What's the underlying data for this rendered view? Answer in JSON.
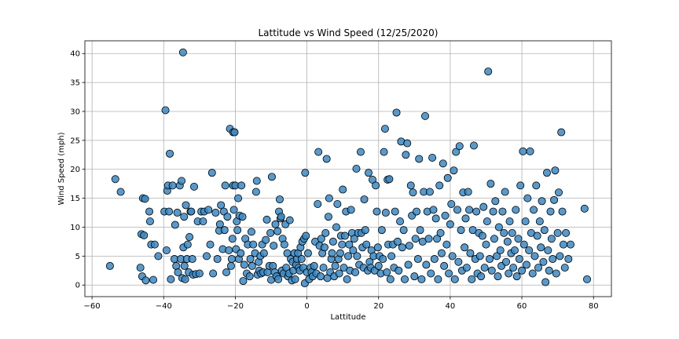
{
  "chart_data": {
    "type": "scatter",
    "title": "Lattitude vs Wind Speed (12/25/2020)",
    "xlabel": "Lattitude",
    "ylabel": "Wind Speed (mph)",
    "xlim": [
      -62,
      85
    ],
    "ylim": [
      -2,
      42.2
    ],
    "xticks": [
      -60,
      -40,
      -20,
      0,
      20,
      40,
      60,
      80
    ],
    "yticks": [
      0,
      5,
      10,
      15,
      20,
      25,
      30,
      35,
      40
    ],
    "grid": true,
    "legend": "none",
    "marker_color": "#3a88c4",
    "marker_edge_color": "#000000",
    "points": [
      [
        -55.0,
        3.3
      ],
      [
        -53.5,
        18.3
      ],
      [
        -52.0,
        16.1
      ],
      [
        -46.5,
        3.0
      ],
      [
        -46.2,
        8.8
      ],
      [
        -46.0,
        1.5
      ],
      [
        -45.8,
        15.0
      ],
      [
        -45.5,
        8.6
      ],
      [
        -45.2,
        14.9
      ],
      [
        -45.0,
        0.8
      ],
      [
        -44.0,
        12.7
      ],
      [
        -43.8,
        11.0
      ],
      [
        -43.5,
        7.0
      ],
      [
        -42.9,
        0.9
      ],
      [
        -42.5,
        7.0
      ],
      [
        -41.5,
        5.0
      ],
      [
        -39.8,
        12.7
      ],
      [
        -39.5,
        30.2
      ],
      [
        -39.2,
        6.0
      ],
      [
        -39.0,
        16.3
      ],
      [
        -38.8,
        17.2
      ],
      [
        -38.5,
        12.7
      ],
      [
        -38.3,
        22.7
      ],
      [
        -38.0,
        1.0
      ],
      [
        -37.5,
        17.2
      ],
      [
        -37.0,
        4.5
      ],
      [
        -36.8,
        10.4
      ],
      [
        -36.5,
        3.3
      ],
      [
        -36.2,
        12.5
      ],
      [
        -36.0,
        2.2
      ],
      [
        -35.5,
        17.2
      ],
      [
        -35.2,
        4.5
      ],
      [
        -35.0,
        18.0
      ],
      [
        -34.8,
        1.2
      ],
      [
        -34.6,
        40.2
      ],
      [
        -34.5,
        6.5
      ],
      [
        -34.3,
        11.8
      ],
      [
        -34.2,
        3.3
      ],
      [
        -34.0,
        1.0
      ],
      [
        -33.8,
        13.8
      ],
      [
        -33.5,
        4.5
      ],
      [
        -33.3,
        7.0
      ],
      [
        -33.0,
        2.2
      ],
      [
        -32.8,
        8.3
      ],
      [
        -32.5,
        12.7
      ],
      [
        -32.3,
        12.7
      ],
      [
        -32.0,
        4.5
      ],
      [
        -31.8,
        1.8
      ],
      [
        -31.5,
        17.0
      ],
      [
        -31.0,
        1.9
      ],
      [
        -30.5,
        11.0
      ],
      [
        -30.0,
        2.0
      ],
      [
        -29.5,
        12.7
      ],
      [
        -29.0,
        11.0
      ],
      [
        -28.7,
        12.7
      ],
      [
        -28.0,
        5.0
      ],
      [
        -27.5,
        13.0
      ],
      [
        -27.0,
        7.0
      ],
      [
        -26.5,
        19.4
      ],
      [
        -26.2,
        2.0
      ],
      [
        -25.5,
        12.5
      ],
      [
        -25.0,
        4.5
      ],
      [
        -24.5,
        9.4
      ],
      [
        -24.3,
        10.5
      ],
      [
        -24.0,
        13.8
      ],
      [
        -23.5,
        6.2
      ],
      [
        -23.2,
        12.7
      ],
      [
        -23.0,
        9.5
      ],
      [
        -22.8,
        17.2
      ],
      [
        -22.5,
        2.2
      ],
      [
        -22.2,
        11.8
      ],
      [
        -21.8,
        6.0
      ],
      [
        -21.5,
        27.0
      ],
      [
        -21.2,
        3.3
      ],
      [
        -21.0,
        4.5
      ],
      [
        -20.8,
        8.0
      ],
      [
        -20.6,
        17.2
      ],
      [
        -20.6,
        26.4
      ],
      [
        -20.4,
        13.0
      ],
      [
        -20.2,
        26.4
      ],
      [
        -20.0,
        17.2
      ],
      [
        -19.8,
        6.2
      ],
      [
        -19.6,
        11.0
      ],
      [
        -19.4,
        9.5
      ],
      [
        -19.2,
        15.0
      ],
      [
        -19.0,
        4.5
      ],
      [
        -18.8,
        12.0
      ],
      [
        -18.5,
        5.5
      ],
      [
        -18.3,
        17.2
      ],
      [
        -18.0,
        11.8
      ],
      [
        -17.8,
        0.7
      ],
      [
        -17.5,
        3.5
      ],
      [
        -17.2,
        8.0
      ],
      [
        -16.8,
        2.0
      ],
      [
        -16.5,
        7.0
      ],
      [
        -16.0,
        1.5
      ],
      [
        -15.8,
        4.5
      ],
      [
        -15.5,
        9.2
      ],
      [
        -15.3,
        3.3
      ],
      [
        -15.0,
        7.0
      ],
      [
        -14.5,
        5.5
      ],
      [
        -14.2,
        16.1
      ],
      [
        -14.0,
        18.0
      ],
      [
        -13.8,
        1.8
      ],
      [
        -13.5,
        4.0
      ],
      [
        -13.3,
        2.5
      ],
      [
        -13.0,
        5.0
      ],
      [
        -12.8,
        2.0
      ],
      [
        -12.5,
        7.0
      ],
      [
        -12.2,
        2.2
      ],
      [
        -12.0,
        5.5
      ],
      [
        -11.5,
        7.8
      ],
      [
        -11.2,
        11.3
      ],
      [
        -11.0,
        2.2
      ],
      [
        -10.5,
        3.3
      ],
      [
        -10.2,
        9.0
      ],
      [
        -10.0,
        0.9
      ],
      [
        -9.8,
        18.7
      ],
      [
        -9.5,
        3.3
      ],
      [
        -9.3,
        6.8
      ],
      [
        -9.0,
        2.2
      ],
      [
        -8.8,
        10.5
      ],
      [
        -8.5,
        1.5
      ],
      [
        -8.2,
        9.3
      ],
      [
        -8.0,
        1.0
      ],
      [
        -7.8,
        12.7
      ],
      [
        -7.6,
        14.8
      ],
      [
        -7.4,
        11.5
      ],
      [
        -7.2,
        11.8
      ],
      [
        -7.0,
        2.5
      ],
      [
        -6.8,
        8.0
      ],
      [
        -6.5,
        2.0
      ],
      [
        -6.3,
        7.0
      ],
      [
        -6.0,
        10.5
      ],
      [
        -5.8,
        3.0
      ],
      [
        -5.5,
        5.5
      ],
      [
        -5.3,
        1.5
      ],
      [
        -5.0,
        2.0
      ],
      [
        -4.8,
        11.2
      ],
      [
        -4.5,
        4.5
      ],
      [
        -4.2,
        0.8
      ],
      [
        -4.0,
        4.0
      ],
      [
        -3.8,
        2.5
      ],
      [
        -3.5,
        5.5
      ],
      [
        -3.3,
        1.0
      ],
      [
        -3.0,
        3.5
      ],
      [
        -2.8,
        4.5
      ],
      [
        -2.5,
        5.5
      ],
      [
        -2.3,
        3.0
      ],
      [
        -2.0,
        2.5
      ],
      [
        -1.8,
        6.5
      ],
      [
        -1.5,
        4.5
      ],
      [
        -1.3,
        7.5
      ],
      [
        -1.0,
        3.0
      ],
      [
        -0.8,
        8.0
      ],
      [
        -0.6,
        0.3
      ],
      [
        -0.5,
        19.4
      ],
      [
        -0.3,
        8.5
      ],
      [
        0.0,
        2.2
      ],
      [
        0.3,
        5.5
      ],
      [
        0.6,
        1.0
      ],
      [
        1.0,
        3.0
      ],
      [
        1.3,
        2.2
      ],
      [
        1.6,
        1.5
      ],
      [
        2.0,
        3.3
      ],
      [
        2.3,
        7.5
      ],
      [
        2.6,
        2.0
      ],
      [
        3.0,
        14.0
      ],
      [
        3.2,
        23.0
      ],
      [
        3.5,
        6.8
      ],
      [
        3.8,
        1.5
      ],
      [
        4.0,
        8.0
      ],
      [
        4.3,
        5.5
      ],
      [
        4.6,
        3.0
      ],
      [
        4.9,
        6.5
      ],
      [
        5.2,
        9.0
      ],
      [
        5.5,
        21.8
      ],
      [
        5.7,
        1.2
      ],
      [
        6.0,
        11.8
      ],
      [
        6.2,
        15.0
      ],
      [
        6.5,
        2.2
      ],
      [
        6.8,
        4.5
      ],
      [
        7.0,
        5.5
      ],
      [
        7.3,
        7.5
      ],
      [
        7.6,
        1.5
      ],
      [
        7.9,
        3.3
      ],
      [
        8.2,
        10.0
      ],
      [
        8.5,
        14.0
      ],
      [
        8.8,
        4.5
      ],
      [
        9.0,
        2.0
      ],
      [
        9.3,
        5.5
      ],
      [
        9.5,
        8.5
      ],
      [
        9.8,
        7.0
      ],
      [
        10.0,
        16.5
      ],
      [
        10.3,
        3.0
      ],
      [
        10.6,
        8.5
      ],
      [
        10.9,
        12.7
      ],
      [
        11.2,
        1.0
      ],
      [
        11.5,
        5.0
      ],
      [
        11.8,
        7.0
      ],
      [
        12.0,
        2.5
      ],
      [
        12.3,
        13.0
      ],
      [
        12.6,
        9.0
      ],
      [
        12.9,
        6.0
      ],
      [
        13.2,
        8.0
      ],
      [
        13.5,
        2.2
      ],
      [
        13.8,
        20.1
      ],
      [
        14.0,
        5.0
      ],
      [
        14.3,
        9.0
      ],
      [
        14.6,
        3.5
      ],
      [
        15.0,
        23.0
      ],
      [
        15.2,
        9.0
      ],
      [
        15.5,
        6.5
      ],
      [
        15.8,
        3.0
      ],
      [
        16.0,
        14.8
      ],
      [
        16.3,
        9.5
      ],
      [
        16.6,
        7.0
      ],
      [
        17.0,
        2.5
      ],
      [
        17.2,
        19.4
      ],
      [
        17.5,
        4.0
      ],
      [
        17.8,
        3.0
      ],
      [
        18.0,
        6.0
      ],
      [
        18.3,
        18.2
      ],
      [
        18.6,
        5.0
      ],
      [
        18.9,
        2.5
      ],
      [
        19.2,
        17.2
      ],
      [
        19.5,
        12.7
      ],
      [
        19.8,
        6.5
      ],
      [
        20.0,
        3.3
      ],
      [
        20.3,
        5.0
      ],
      [
        20.6,
        2.0
      ],
      [
        20.9,
        9.5
      ],
      [
        21.2,
        4.5
      ],
      [
        21.5,
        23.0
      ],
      [
        21.8,
        27.0
      ],
      [
        22.0,
        12.5
      ],
      [
        22.3,
        2.2
      ],
      [
        22.5,
        18.2
      ],
      [
        22.7,
        7.0
      ],
      [
        23.0,
        18.3
      ],
      [
        23.3,
        1.0
      ],
      [
        23.6,
        5.0
      ],
      [
        24.0,
        7.0
      ],
      [
        24.3,
        3.0
      ],
      [
        24.6,
        12.7
      ],
      [
        25.0,
        29.8
      ],
      [
        25.3,
        7.5
      ],
      [
        25.6,
        2.5
      ],
      [
        26.0,
        11.0
      ],
      [
        26.3,
        24.8
      ],
      [
        26.6,
        6.5
      ],
      [
        27.0,
        9.5
      ],
      [
        27.3,
        1.0
      ],
      [
        27.6,
        22.5
      ],
      [
        28.0,
        24.5
      ],
      [
        28.3,
        3.5
      ],
      [
        28.6,
        6.8
      ],
      [
        29.0,
        17.2
      ],
      [
        29.3,
        12.0
      ],
      [
        29.6,
        16.0
      ],
      [
        30.0,
        1.5
      ],
      [
        30.3,
        8.0
      ],
      [
        30.6,
        12.7
      ],
      [
        31.0,
        4.5
      ],
      [
        31.3,
        21.8
      ],
      [
        31.6,
        9.5
      ],
      [
        32.0,
        1.0
      ],
      [
        32.3,
        7.5
      ],
      [
        32.6,
        16.1
      ],
      [
        33.0,
        29.2
      ],
      [
        33.3,
        3.5
      ],
      [
        33.6,
        12.7
      ],
      [
        34.0,
        8.0
      ],
      [
        34.3,
        16.1
      ],
      [
        34.6,
        2.0
      ],
      [
        35.0,
        22.0
      ],
      [
        35.3,
        13.0
      ],
      [
        35.6,
        4.5
      ],
      [
        36.0,
        11.5
      ],
      [
        36.3,
        8.0
      ],
      [
        36.6,
        1.0
      ],
      [
        37.0,
        17.2
      ],
      [
        37.3,
        9.0
      ],
      [
        37.6,
        5.5
      ],
      [
        38.0,
        21.0
      ],
      [
        38.3,
        3.3
      ],
      [
        38.6,
        12.0
      ],
      [
        39.0,
        7.0
      ],
      [
        39.3,
        18.5
      ],
      [
        39.6,
        2.0
      ],
      [
        40.0,
        10.5
      ],
      [
        40.3,
        14.0
      ],
      [
        40.6,
        5.0
      ],
      [
        41.0,
        19.8
      ],
      [
        41.3,
        1.0
      ],
      [
        41.6,
        23.0
      ],
      [
        42.0,
        13.0
      ],
      [
        42.3,
        4.0
      ],
      [
        42.6,
        24.0
      ],
      [
        43.0,
        9.5
      ],
      [
        43.3,
        2.5
      ],
      [
        43.6,
        16.0
      ],
      [
        44.0,
        6.5
      ],
      [
        44.3,
        11.5
      ],
      [
        44.6,
        3.0
      ],
      [
        45.0,
        16.1
      ],
      [
        45.3,
        13.0
      ],
      [
        45.6,
        5.5
      ],
      [
        46.0,
        1.0
      ],
      [
        46.3,
        9.5
      ],
      [
        46.6,
        24.1
      ],
      [
        47.0,
        4.5
      ],
      [
        47.3,
        12.7
      ],
      [
        47.6,
        2.0
      ],
      [
        48.0,
        9.0
      ],
      [
        48.3,
        5.0
      ],
      [
        48.6,
        1.5
      ],
      [
        49.0,
        8.5
      ],
      [
        49.3,
        13.5
      ],
      [
        49.6,
        3.0
      ],
      [
        50.0,
        7.0
      ],
      [
        50.3,
        11.0
      ],
      [
        50.6,
        36.9
      ],
      [
        51.0,
        4.5
      ],
      [
        51.3,
        17.5
      ],
      [
        51.6,
        2.5
      ],
      [
        52.0,
        12.7
      ],
      [
        52.3,
        8.0
      ],
      [
        52.6,
        14.5
      ],
      [
        53.0,
        5.0
      ],
      [
        53.3,
        1.5
      ],
      [
        53.6,
        10.0
      ],
      [
        54.0,
        6.0
      ],
      [
        54.3,
        3.3
      ],
      [
        54.6,
        12.7
      ],
      [
        55.0,
        9.0
      ],
      [
        55.3,
        16.1
      ],
      [
        55.6,
        4.0
      ],
      [
        56.0,
        7.5
      ],
      [
        56.3,
        2.0
      ],
      [
        56.6,
        11.0
      ],
      [
        57.0,
        5.5
      ],
      [
        57.3,
        9.0
      ],
      [
        57.6,
        3.0
      ],
      [
        58.0,
        6.0
      ],
      [
        58.3,
        13.0
      ],
      [
        58.6,
        1.5
      ],
      [
        59.0,
        8.0
      ],
      [
        59.3,
        4.5
      ],
      [
        59.6,
        17.2
      ],
      [
        60.0,
        2.5
      ],
      [
        60.3,
        23.1
      ],
      [
        60.6,
        7.0
      ],
      [
        61.0,
        11.0
      ],
      [
        61.3,
        3.5
      ],
      [
        61.6,
        15.0
      ],
      [
        62.0,
        6.0
      ],
      [
        62.3,
        23.1
      ],
      [
        62.6,
        9.0
      ],
      [
        63.0,
        2.0
      ],
      [
        63.3,
        13.0
      ],
      [
        63.6,
        5.0
      ],
      [
        64.0,
        17.2
      ],
      [
        64.3,
        8.5
      ],
      [
        64.6,
        3.0
      ],
      [
        65.0,
        11.0
      ],
      [
        65.3,
        6.5
      ],
      [
        65.6,
        14.5
      ],
      [
        66.0,
        4.0
      ],
      [
        66.3,
        9.5
      ],
      [
        66.6,
        0.5
      ],
      [
        67.0,
        19.4
      ],
      [
        67.3,
        6.0
      ],
      [
        67.6,
        2.5
      ],
      [
        68.0,
        12.7
      ],
      [
        68.3,
        8.0
      ],
      [
        68.6,
        4.5
      ],
      [
        69.0,
        14.7
      ],
      [
        69.3,
        19.8
      ],
      [
        69.6,
        2.0
      ],
      [
        70.0,
        9.0
      ],
      [
        70.3,
        16.0
      ],
      [
        70.6,
        5.0
      ],
      [
        71.0,
        26.4
      ],
      [
        71.3,
        12.7
      ],
      [
        71.6,
        7.0
      ],
      [
        72.0,
        3.0
      ],
      [
        72.3,
        9.0
      ],
      [
        73.0,
        4.5
      ],
      [
        73.6,
        7.0
      ],
      [
        77.5,
        13.2
      ],
      [
        78.2,
        1.0
      ]
    ]
  }
}
